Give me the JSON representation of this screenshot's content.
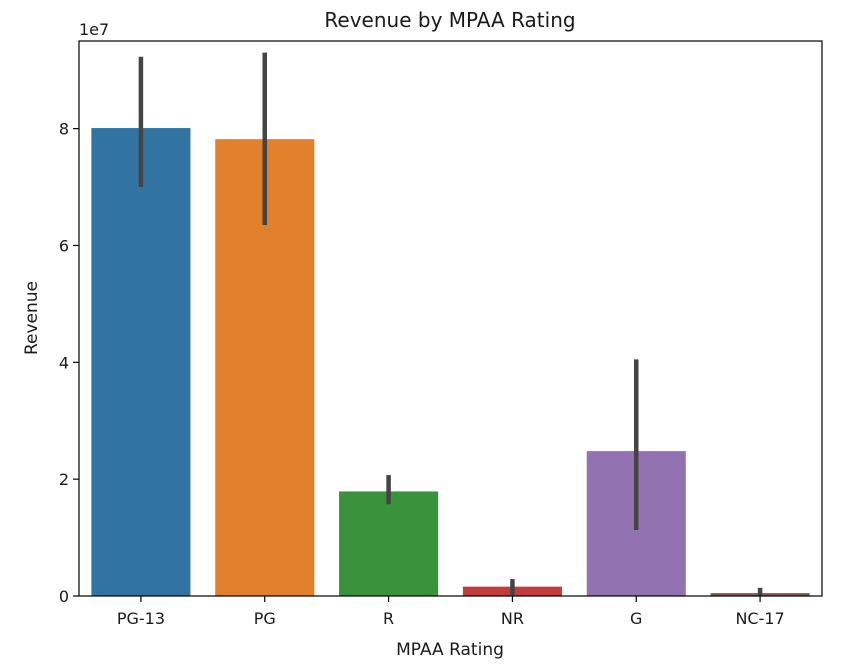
{
  "chart_data": {
    "type": "bar",
    "title": "Revenue by MPAA Rating",
    "xlabel": "MPAA Rating",
    "ylabel": "Revenue",
    "y_offset_label": "1e7",
    "y_scale": 10000000,
    "categories": [
      "PG-13",
      "PG",
      "R",
      "NR",
      "G",
      "NC-17"
    ],
    "values": [
      80100000,
      78200000,
      17900000,
      1600000,
      24800000,
      500000
    ],
    "error_low": [
      70000000,
      63500000,
      15700000,
      200000,
      11300000,
      0
    ],
    "error_high": [
      92300000,
      93000000,
      20700000,
      2900000,
      40500000,
      1400000
    ],
    "colors": [
      "#3274a1",
      "#e1812c",
      "#3a923a",
      "#c03d3e",
      "#9372b2",
      "#845b53"
    ],
    "error_color": "#444444",
    "ylim": [
      0,
      95000000
    ],
    "yticks": [
      0,
      20000000,
      40000000,
      60000000,
      80000000
    ],
    "ytick_labels": [
      "0",
      "2",
      "4",
      "6",
      "8"
    ],
    "grid": false
  }
}
